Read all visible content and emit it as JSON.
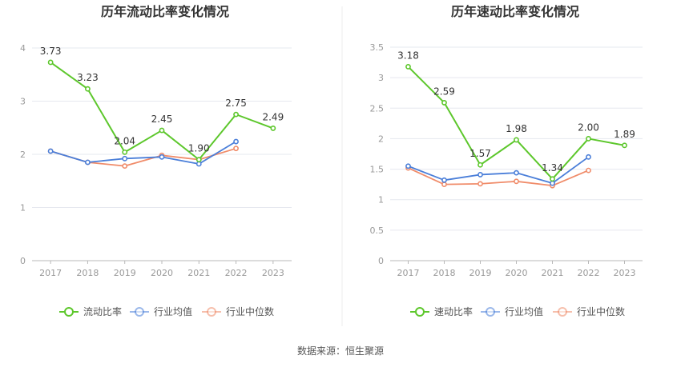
{
  "source": "数据来源：恒生聚源",
  "colors": {
    "main": "#5dc72c",
    "avg": "#4b7fd9",
    "median": "#f08c6a",
    "grid": "#e6e8ef",
    "axis": "#999999"
  },
  "chart_data": [
    {
      "type": "line",
      "title": "历年流动比率变化情况",
      "categories": [
        "2017",
        "2018",
        "2019",
        "2020",
        "2021",
        "2022",
        "2023"
      ],
      "ylim": [
        0,
        4
      ],
      "yticks": [
        0,
        1,
        2,
        3,
        4
      ],
      "grid": true,
      "legend_position": "bottom",
      "series": [
        {
          "name": "流动比率",
          "values": [
            3.73,
            3.23,
            2.04,
            2.45,
            1.9,
            2.75,
            2.49
          ],
          "labels": [
            "3.73",
            "3.23",
            "2.04",
            "2.45",
            "1.90",
            "2.75",
            "2.49"
          ]
        },
        {
          "name": "行业均值",
          "values": [
            2.06,
            1.85,
            1.92,
            1.95,
            1.82,
            2.24,
            null
          ]
        },
        {
          "name": "行业中位数",
          "values": [
            2.06,
            1.85,
            1.78,
            1.98,
            1.9,
            2.11,
            null
          ]
        }
      ]
    },
    {
      "type": "line",
      "title": "历年速动比率变化情况",
      "categories": [
        "2017",
        "2018",
        "2019",
        "2020",
        "2021",
        "2022",
        "2023"
      ],
      "ylim": [
        0,
        3.5
      ],
      "yticks": [
        0,
        0.5,
        1,
        1.5,
        2,
        2.5,
        3,
        3.5
      ],
      "grid": true,
      "legend_position": "bottom",
      "series": [
        {
          "name": "速动比率",
          "values": [
            3.18,
            2.59,
            1.57,
            1.98,
            1.34,
            2.0,
            1.89
          ],
          "labels": [
            "3.18",
            "2.59",
            "1.57",
            "1.98",
            "1.34",
            "2.00",
            "1.89"
          ]
        },
        {
          "name": "行业均值",
          "values": [
            1.55,
            1.32,
            1.41,
            1.44,
            1.27,
            1.7,
            null
          ]
        },
        {
          "name": "行业中位数",
          "values": [
            1.52,
            1.25,
            1.26,
            1.3,
            1.23,
            1.48,
            null
          ]
        }
      ]
    }
  ]
}
